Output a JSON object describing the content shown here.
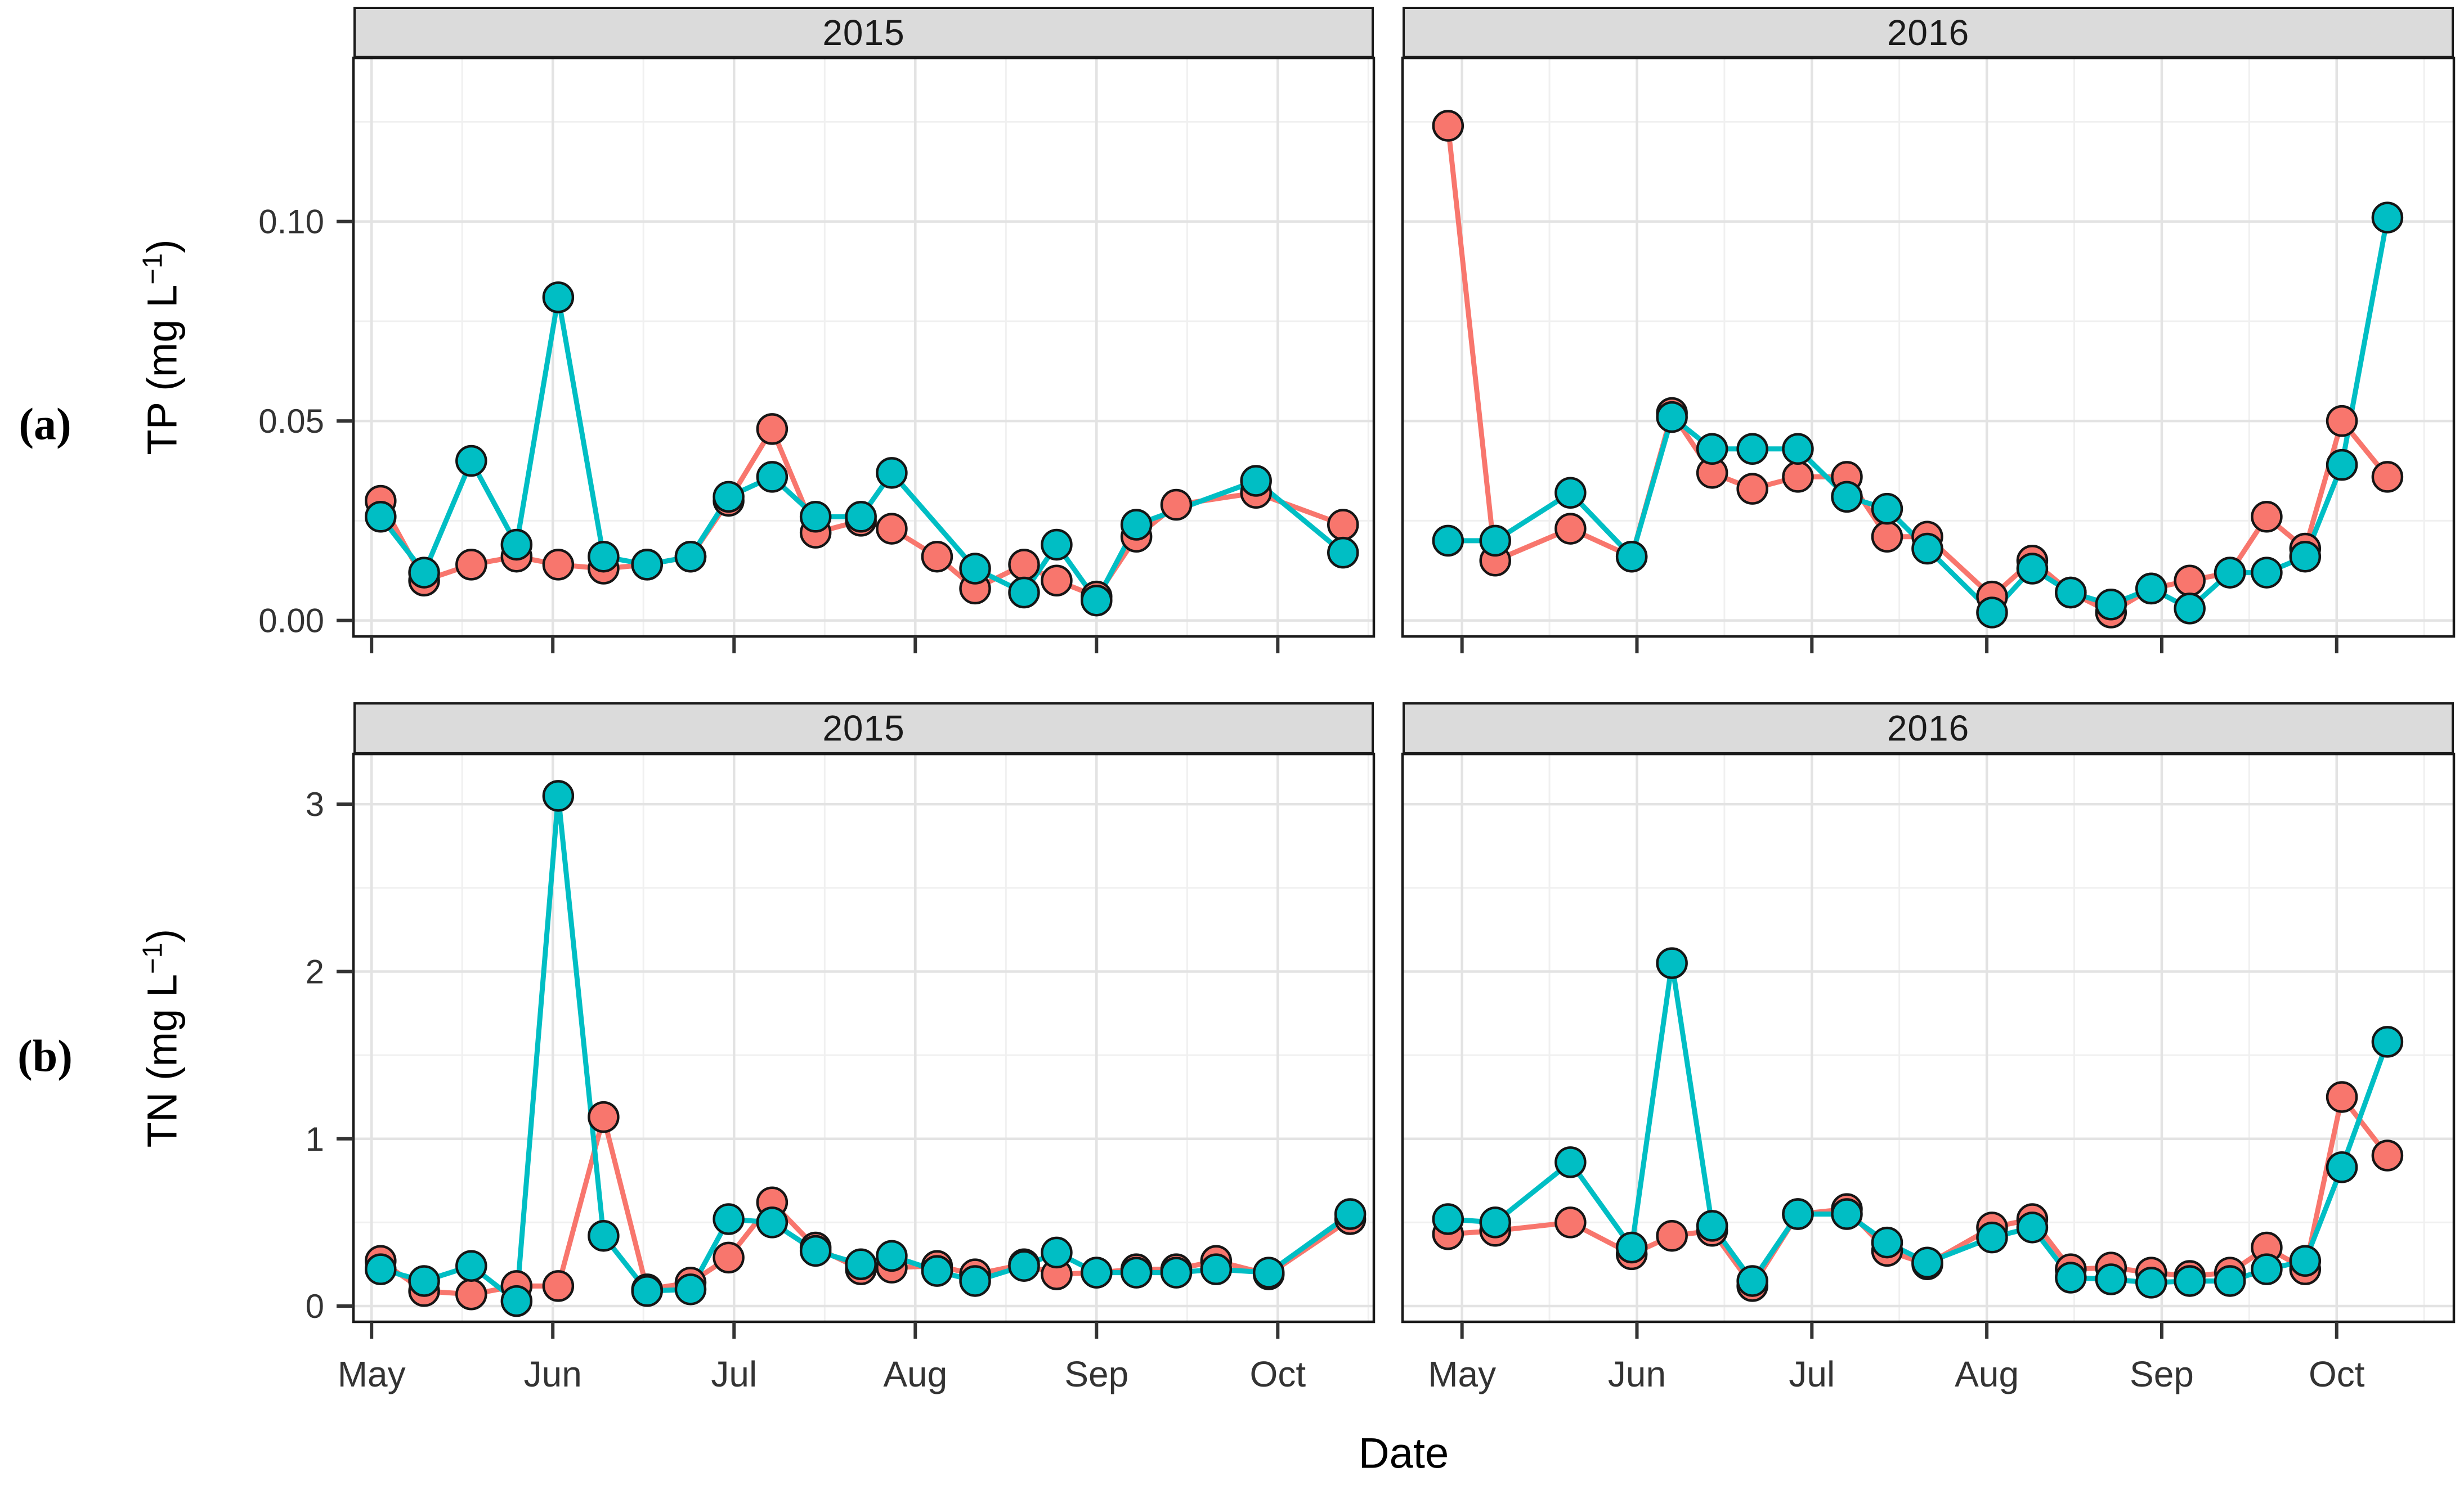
{
  "figure": {
    "panel_label_a": "(a)",
    "panel_label_b": "(b)",
    "ylabel_top": {
      "prefix": "TP (mg L",
      "sup": "−1",
      "suffix": ")"
    },
    "ylabel_bottom": {
      "prefix": "TN (mg L",
      "sup": "−1",
      "suffix": ")"
    },
    "xlabel": "Date",
    "colors": {
      "series_salmon": "#F8766D",
      "series_teal": "#00BEC4",
      "marker_outline": "#151515",
      "strip_bg": "#DBDBDB",
      "panel_border": "#1A1A1A",
      "grid_major": "#E3E3E3",
      "grid_minor": "#F0F0F0",
      "tick_text": "#333333"
    }
  },
  "chart_data": [
    {
      "id": "tp-2015",
      "type": "line",
      "facet_title": "2015",
      "row_variable": "TP (mg L-1)",
      "x_unit": "months since May 1",
      "xlim": [
        -0.1,
        5.53
      ],
      "ylim": [
        -0.004,
        0.141
      ],
      "grid": true,
      "legend": "none",
      "show_x_labels": false,
      "show_y_labels": true,
      "x_ticks": [
        {
          "pos": 0,
          "label": "May"
        },
        {
          "pos": 1,
          "label": "Jun"
        },
        {
          "pos": 2,
          "label": "Jul"
        },
        {
          "pos": 3,
          "label": "Aug"
        },
        {
          "pos": 4,
          "label": "Sep"
        },
        {
          "pos": 5,
          "label": "Oct"
        }
      ],
      "x_minor": [
        0.5,
        1.5,
        2.5,
        3.5,
        4.5,
        5.5
      ],
      "y_ticks": [
        {
          "pos": 0,
          "label": "0.00"
        },
        {
          "pos": 0.05,
          "label": "0.05"
        },
        {
          "pos": 0.1,
          "label": "0.10"
        }
      ],
      "y_minor": [
        0.025,
        0.075,
        0.125
      ],
      "series": [
        {
          "name": "salmon",
          "color": "#F8766D",
          "x": [
            0.05,
            0.29,
            0.55,
            0.8,
            1.03,
            1.28,
            1.52,
            1.76,
            1.97,
            2.21,
            2.45,
            2.7,
            2.87,
            3.12,
            3.33,
            3.6,
            3.78,
            4.0,
            4.22,
            4.44,
            4.88,
            5.36
          ],
          "y": [
            0.03,
            0.01,
            0.014,
            0.016,
            0.014,
            0.013,
            0.014,
            0.016,
            0.03,
            0.048,
            0.022,
            0.025,
            0.023,
            0.016,
            0.008,
            0.014,
            0.01,
            0.006,
            0.021,
            0.029,
            0.032,
            0.024
          ]
        },
        {
          "name": "teal",
          "color": "#00BEC4",
          "x": [
            0.05,
            0.29,
            0.55,
            0.8,
            1.03,
            1.28,
            1.52,
            1.76,
            1.97,
            2.21,
            2.45,
            2.7,
            2.87,
            3.33,
            3.6,
            3.78,
            4.0,
            4.22,
            4.88,
            5.36
          ],
          "y": [
            0.026,
            0.012,
            0.04,
            0.019,
            0.081,
            0.016,
            0.014,
            0.016,
            0.031,
            0.036,
            0.026,
            0.026,
            0.037,
            0.013,
            0.007,
            0.019,
            0.005,
            0.024,
            0.035,
            0.017
          ]
        }
      ]
    },
    {
      "id": "tp-2016",
      "type": "line",
      "facet_title": "2016",
      "row_variable": "TP (mg L-1)",
      "x_unit": "months since May 1",
      "xlim": [
        -0.34,
        5.67
      ],
      "ylim": [
        -0.004,
        0.141
      ],
      "grid": true,
      "legend": "none",
      "show_x_labels": false,
      "show_y_labels": false,
      "x_ticks": [
        {
          "pos": 0,
          "label": "May"
        },
        {
          "pos": 1,
          "label": "Jun"
        },
        {
          "pos": 2,
          "label": "Jul"
        },
        {
          "pos": 3,
          "label": "Aug"
        },
        {
          "pos": 4,
          "label": "Sep"
        },
        {
          "pos": 5,
          "label": "Oct"
        }
      ],
      "x_minor": [
        0.5,
        1.5,
        2.5,
        3.5,
        4.5,
        5.5
      ],
      "y_ticks": [
        {
          "pos": 0,
          "label": "0.00"
        },
        {
          "pos": 0.05,
          "label": "0.05"
        },
        {
          "pos": 0.1,
          "label": "0.10"
        }
      ],
      "y_minor": [
        0.025,
        0.075,
        0.125
      ],
      "series": [
        {
          "name": "salmon",
          "color": "#F8766D",
          "x": [
            -0.08,
            0.19,
            0.62,
            0.97,
            1.2,
            1.43,
            1.66,
            1.92,
            2.2,
            2.43,
            2.66,
            3.03,
            3.26,
            3.48,
            3.71,
            3.94,
            4.16,
            4.39,
            4.6,
            4.82,
            5.03,
            5.29
          ],
          "y": [
            0.124,
            0.015,
            0.023,
            0.016,
            0.052,
            0.037,
            0.033,
            0.036,
            0.036,
            0.021,
            0.021,
            0.006,
            0.015,
            0.007,
            0.002,
            0.008,
            0.01,
            0.012,
            0.026,
            0.018,
            0.05,
            0.036
          ]
        },
        {
          "name": "teal",
          "color": "#00BEC4",
          "x": [
            -0.08,
            0.19,
            0.62,
            0.97,
            1.2,
            1.43,
            1.66,
            1.92,
            2.2,
            2.43,
            2.66,
            3.03,
            3.26,
            3.48,
            3.71,
            3.94,
            4.16,
            4.39,
            4.6,
            4.82,
            5.03,
            5.29
          ],
          "y": [
            0.02,
            0.02,
            0.032,
            0.016,
            0.051,
            0.043,
            0.043,
            0.043,
            0.031,
            0.028,
            0.018,
            0.002,
            0.013,
            0.007,
            0.004,
            0.008,
            0.003,
            0.012,
            0.012,
            0.016,
            0.039,
            0.101
          ]
        }
      ]
    },
    {
      "id": "tn-2015",
      "type": "line",
      "facet_title": "2015",
      "row_variable": "TN (mg L-1)",
      "x_unit": "months since May 1",
      "xlim": [
        -0.1,
        5.53
      ],
      "ylim": [
        -0.094,
        3.3
      ],
      "grid": true,
      "legend": "none",
      "show_x_labels": true,
      "show_y_labels": true,
      "x_ticks": [
        {
          "pos": 0,
          "label": "May"
        },
        {
          "pos": 1,
          "label": "Jun"
        },
        {
          "pos": 2,
          "label": "Jul"
        },
        {
          "pos": 3,
          "label": "Aug"
        },
        {
          "pos": 4,
          "label": "Sep"
        },
        {
          "pos": 5,
          "label": "Oct"
        }
      ],
      "x_minor": [
        0.5,
        1.5,
        2.5,
        3.5,
        4.5,
        5.5
      ],
      "y_ticks": [
        {
          "pos": 0,
          "label": "0"
        },
        {
          "pos": 1,
          "label": "1"
        },
        {
          "pos": 2,
          "label": "2"
        },
        {
          "pos": 3,
          "label": "3"
        }
      ],
      "y_minor": [
        0.5,
        1.5,
        2.5
      ],
      "series": [
        {
          "name": "salmon",
          "color": "#F8766D",
          "x": [
            0.05,
            0.29,
            0.55,
            0.8,
            1.03,
            1.28,
            1.52,
            1.76,
            1.97,
            2.21,
            2.45,
            2.7,
            2.87,
            3.12,
            3.33,
            3.6,
            3.78,
            4.0,
            4.22,
            4.44,
            4.66,
            4.95,
            5.4
          ],
          "y": [
            0.27,
            0.09,
            0.07,
            0.12,
            0.12,
            1.13,
            0.1,
            0.14,
            0.29,
            0.62,
            0.35,
            0.22,
            0.23,
            0.24,
            0.19,
            0.25,
            0.19,
            0.2,
            0.22,
            0.22,
            0.27,
            0.19,
            0.52
          ]
        },
        {
          "name": "teal",
          "color": "#00BEC4",
          "x": [
            0.05,
            0.29,
            0.55,
            0.8,
            1.03,
            1.28,
            1.52,
            1.76,
            1.97,
            2.21,
            2.45,
            2.7,
            2.87,
            3.12,
            3.33,
            3.6,
            3.78,
            4.0,
            4.22,
            4.44,
            4.66,
            4.95,
            5.4
          ],
          "y": [
            0.22,
            0.15,
            0.24,
            0.03,
            3.05,
            0.42,
            0.09,
            0.1,
            0.52,
            0.5,
            0.33,
            0.25,
            0.3,
            0.21,
            0.15,
            0.24,
            0.32,
            0.2,
            0.2,
            0.2,
            0.22,
            0.2,
            0.55
          ]
        }
      ]
    },
    {
      "id": "tn-2016",
      "type": "line",
      "facet_title": "2016",
      "row_variable": "TN (mg L-1)",
      "x_unit": "months since May 1",
      "xlim": [
        -0.34,
        5.67
      ],
      "ylim": [
        -0.094,
        3.3
      ],
      "grid": true,
      "legend": "none",
      "show_x_labels": true,
      "show_y_labels": false,
      "x_ticks": [
        {
          "pos": 0,
          "label": "May"
        },
        {
          "pos": 1,
          "label": "Jun"
        },
        {
          "pos": 2,
          "label": "Jul"
        },
        {
          "pos": 3,
          "label": "Aug"
        },
        {
          "pos": 4,
          "label": "Sep"
        },
        {
          "pos": 5,
          "label": "Oct"
        }
      ],
      "x_minor": [
        0.5,
        1.5,
        2.5,
        3.5,
        4.5,
        5.5
      ],
      "y_ticks": [
        {
          "pos": 0,
          "label": "0"
        },
        {
          "pos": 1,
          "label": "1"
        },
        {
          "pos": 2,
          "label": "2"
        },
        {
          "pos": 3,
          "label": "3"
        }
      ],
      "y_minor": [
        0.5,
        1.5,
        2.5
      ],
      "series": [
        {
          "name": "salmon",
          "color": "#F8766D",
          "x": [
            -0.08,
            0.19,
            0.62,
            0.97,
            1.2,
            1.43,
            1.66,
            1.92,
            2.2,
            2.43,
            2.66,
            3.03,
            3.26,
            3.48,
            3.71,
            3.94,
            4.16,
            4.39,
            4.6,
            4.82,
            5.03,
            5.29
          ],
          "y": [
            0.43,
            0.45,
            0.5,
            0.31,
            0.42,
            0.45,
            0.12,
            0.55,
            0.58,
            0.33,
            0.25,
            0.47,
            0.52,
            0.22,
            0.23,
            0.2,
            0.18,
            0.2,
            0.35,
            0.22,
            1.25,
            0.9
          ]
        },
        {
          "name": "teal",
          "color": "#00BEC4",
          "x": [
            -0.08,
            0.19,
            0.62,
            0.97,
            1.2,
            1.43,
            1.66,
            1.92,
            2.2,
            2.43,
            2.66,
            3.03,
            3.26,
            3.48,
            3.71,
            3.94,
            4.16,
            4.39,
            4.6,
            4.82,
            5.03,
            5.29
          ],
          "y": [
            0.52,
            0.5,
            0.86,
            0.35,
            2.05,
            0.48,
            0.15,
            0.55,
            0.55,
            0.38,
            0.26,
            0.41,
            0.47,
            0.17,
            0.16,
            0.14,
            0.15,
            0.15,
            0.22,
            0.27,
            0.83,
            1.58
          ]
        }
      ]
    }
  ]
}
